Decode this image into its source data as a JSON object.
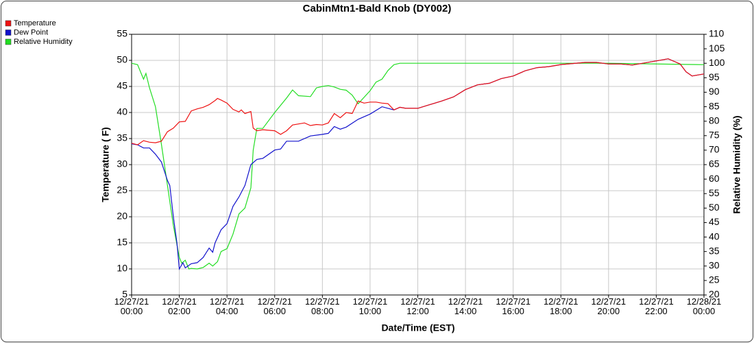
{
  "chart_data": {
    "type": "line",
    "title": "CabinMtn1-Bald Knob (DY002)",
    "x_label": "Date/Time (EST)",
    "y_label": "Temperature ( F)",
    "y2_label": "Relative Humidity (%)",
    "grid": true,
    "legend": "top-left",
    "xlim": [
      0,
      24
    ],
    "xticks": [
      {
        "value": 0,
        "label": "12/27/21\n00:00"
      },
      {
        "value": 2,
        "label": "12/27/21\n02:00"
      },
      {
        "value": 4,
        "label": "12/27/21\n04:00"
      },
      {
        "value": 6,
        "label": "12/27/21\n06:00"
      },
      {
        "value": 8,
        "label": "12/27/21\n08:00"
      },
      {
        "value": 10,
        "label": "12/27/21\n10:00"
      },
      {
        "value": 12,
        "label": "12/27/21\n12:00"
      },
      {
        "value": 14,
        "label": "12/27/21\n14:00"
      },
      {
        "value": 16,
        "label": "12/27/21\n16:00"
      },
      {
        "value": 18,
        "label": "12/27/21\n18:00"
      },
      {
        "value": 20,
        "label": "12/27/21\n20:00"
      },
      {
        "value": 22,
        "label": "12/27/21\n22:00"
      },
      {
        "value": 24,
        "label": "12/28/21\n00:00"
      }
    ],
    "ylim": [
      5,
      55
    ],
    "yticks": [
      5,
      10,
      15,
      20,
      25,
      30,
      35,
      40,
      45,
      50,
      55
    ],
    "y2lim": [
      20,
      110
    ],
    "y2ticks": [
      20,
      25,
      30,
      35,
      40,
      45,
      50,
      55,
      60,
      65,
      70,
      75,
      80,
      85,
      90,
      95,
      100,
      105,
      110
    ],
    "series": [
      {
        "name": "Temperature",
        "color": "#ee1111",
        "x": [
          0,
          0.25,
          0.5,
          0.75,
          1,
          1.25,
          1.5,
          1.75,
          2,
          2.25,
          2.5,
          2.75,
          3,
          3.25,
          3.5,
          3.6,
          3.75,
          4,
          4.25,
          4.5,
          4.6,
          4.75,
          5,
          5.1,
          5.25,
          5.5,
          6,
          6.25,
          6.5,
          6.75,
          7,
          7.25,
          7.5,
          7.75,
          8,
          8.25,
          8.5,
          8.75,
          9,
          9.25,
          9.5,
          9.75,
          10,
          10.25,
          10.5,
          10.75,
          11,
          11.25,
          11.5,
          12,
          12.5,
          13,
          13.5,
          14,
          14.5,
          15,
          15.5,
          16,
          16.5,
          17,
          17.5,
          18,
          18.5,
          19,
          19.5,
          20,
          20.5,
          21,
          21.5,
          22,
          22.5,
          22.75,
          23,
          23.25,
          23.5,
          24
        ],
        "values": [
          34.1,
          33.8,
          34.6,
          34.3,
          34.2,
          34.5,
          36.3,
          37,
          38.2,
          38.3,
          40.3,
          40.7,
          41,
          41.5,
          42.3,
          42.7,
          42.4,
          41.8,
          40.6,
          40.1,
          40.5,
          39.8,
          40.2,
          37,
          36.5,
          36.7,
          36.5,
          35.8,
          36.5,
          37.6,
          37.8,
          38,
          37.5,
          37.7,
          37.6,
          38,
          39.8,
          39,
          40,
          39.8,
          42.2,
          41.8,
          42,
          42,
          41.8,
          41.7,
          40.5,
          41,
          40.8,
          40.8,
          41.5,
          42.2,
          43,
          44.4,
          45.3,
          45.6,
          46.5,
          47,
          48,
          48.6,
          48.8,
          49.2,
          49.4,
          49.6,
          49.6,
          49.3,
          49.3,
          49.1,
          49.5,
          49.9,
          50.3,
          49.8,
          49.3,
          47.8,
          47,
          47.4
        ]
      },
      {
        "name": "Dew Point",
        "color": "#1111cc",
        "x": [
          0,
          0.25,
          0.5,
          0.75,
          1,
          1.25,
          1.5,
          1.6,
          1.75,
          1.9,
          2,
          2.15,
          2.25,
          2.5,
          2.75,
          3,
          3.25,
          3.4,
          3.5,
          3.75,
          4,
          4.25,
          4.5,
          4.75,
          5,
          5.25,
          5.5,
          6,
          6.25,
          6.5,
          7,
          7.5,
          8,
          8.25,
          8.5,
          8.75,
          9,
          9.5,
          10,
          10.5,
          11,
          11.25,
          11.5,
          12,
          12.5,
          13,
          13.5,
          14,
          14.5,
          15,
          15.5,
          16,
          16.5,
          17,
          17.5,
          18,
          18.5,
          19,
          19.5,
          20,
          20.5,
          21,
          21.5,
          22,
          22.5,
          22.75,
          23,
          23.25,
          23.5,
          24
        ],
        "values": [
          34,
          33.8,
          33.2,
          33.2,
          32,
          30.5,
          27,
          26,
          20,
          15,
          10,
          11.2,
          10.2,
          11,
          11.2,
          12.2,
          14,
          13.2,
          15,
          17.5,
          18.7,
          22,
          23.8,
          26,
          30,
          31,
          31.2,
          32.8,
          33,
          34.5,
          34.5,
          35.5,
          35.8,
          36,
          37.3,
          36.8,
          37.2,
          38.7,
          39.7,
          41.1,
          40.5,
          41,
          40.8,
          40.8,
          41.5,
          42.2,
          43,
          44.4,
          45.3,
          45.6,
          46.5,
          47,
          48,
          48.6,
          48.8,
          49.2,
          49.4,
          49.6,
          49.6,
          49.3,
          49.3,
          49.1,
          49.5,
          49.9,
          50.3,
          49.8,
          49.3,
          47.8,
          47,
          47.4
        ]
      },
      {
        "name": "Relative Humidity",
        "color": "#22dd22",
        "axis": "y2",
        "x": [
          0,
          0.25,
          0.5,
          0.6,
          0.75,
          1,
          1.25,
          1.5,
          1.75,
          2,
          2.1,
          2.25,
          2.4,
          2.5,
          2.75,
          3,
          3.25,
          3.4,
          3.6,
          3.75,
          4,
          4.25,
          4.5,
          4.75,
          5,
          5.1,
          5.25,
          5.5,
          6,
          6.5,
          6.75,
          7,
          7.5,
          7.75,
          8,
          8.25,
          8.5,
          8.75,
          9,
          9.25,
          9.5,
          10,
          10.25,
          10.5,
          10.75,
          11,
          11.25,
          20,
          24
        ],
        "values": [
          100,
          99.5,
          94.5,
          96.5,
          91.5,
          85,
          72,
          58,
          44,
          33,
          31,
          32,
          29,
          29.2,
          29,
          29.5,
          31,
          30,
          31.5,
          35,
          36,
          41,
          48,
          50,
          57,
          70,
          77.5,
          77.5,
          83,
          88,
          90.8,
          88.8,
          88.5,
          91.5,
          92,
          92.3,
          91.8,
          91,
          90.7,
          89,
          86,
          90.5,
          93.5,
          94.5,
          97.5,
          99.5,
          100,
          100,
          99.5
        ]
      }
    ]
  }
}
